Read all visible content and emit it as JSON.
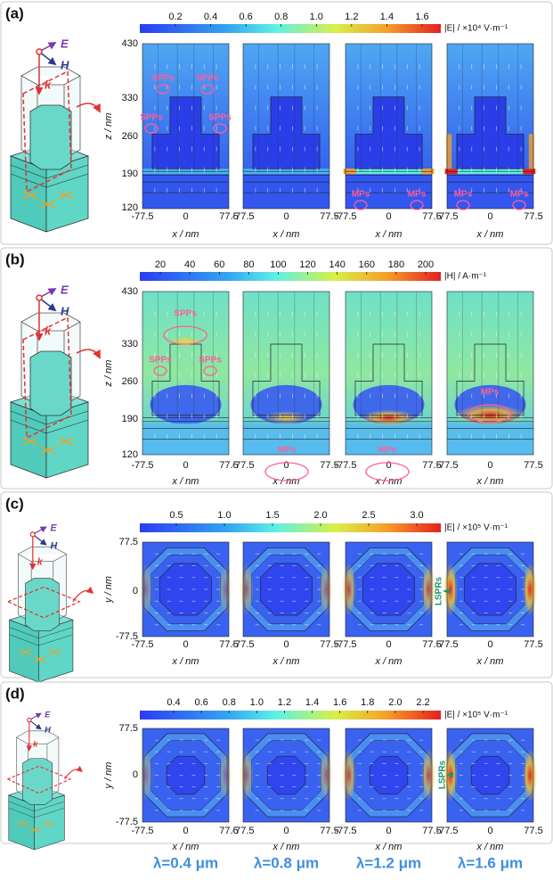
{
  "panels": [
    {
      "label": "(a)",
      "schematic": {
        "E": "E",
        "H": "H",
        "k": "k"
      },
      "colorbar": {
        "ticks": [
          "0.2",
          "0.4",
          "0.6",
          "0.8",
          "1.0",
          "1.2",
          "1.4",
          "1.6"
        ],
        "unit": "|E| / ×10⁴ V·m⁻¹"
      },
      "y_axis": {
        "label": "z / nm",
        "ticks": [
          "430",
          "330",
          "260",
          "190",
          "120"
        ]
      },
      "x_axis": {
        "label": "x / nm",
        "ticks": [
          "-77.5",
          "0",
          "77.5"
        ]
      },
      "maps": [
        {
          "annotations": [
            "SPPs",
            "SPPs",
            "SPPs",
            "SPPs"
          ]
        },
        {
          "annotations": []
        },
        {
          "annotations": [
            "MPs",
            "MPs"
          ]
        },
        {
          "annotations": [
            "MPs",
            "MPs"
          ]
        }
      ]
    },
    {
      "label": "(b)",
      "schematic": {
        "E": "E",
        "H": "H",
        "k": "k"
      },
      "colorbar": {
        "ticks": [
          "20",
          "40",
          "60",
          "80",
          "100",
          "120",
          "140",
          "160",
          "180",
          "200"
        ],
        "unit": "|H| / A·m⁻¹"
      },
      "y_axis": {
        "label": "z / nm",
        "ticks": [
          "430",
          "330",
          "260",
          "190",
          "120"
        ]
      },
      "x_axis": {
        "label": "x / nm",
        "ticks": [
          "-77.5",
          "0",
          "77.5"
        ]
      },
      "maps": [
        {
          "annotations": [
            "SPPs",
            "SPPs",
            "SPPs"
          ]
        },
        {
          "annotations": [
            "MPs"
          ]
        },
        {
          "annotations": [
            "MPs"
          ]
        },
        {
          "annotations": [
            "MPs"
          ]
        }
      ]
    },
    {
      "label": "(c)",
      "schematic": {
        "E": "E",
        "H": "H",
        "k": "k"
      },
      "colorbar": {
        "ticks": [
          "0.5",
          "1.0",
          "1.5",
          "2.0",
          "2.5",
          "3.0"
        ],
        "unit": "|E| / ×10⁵ V·m⁻¹"
      },
      "y_axis": {
        "label": "y / nm",
        "ticks": [
          "77.5",
          "0",
          "-77.5"
        ]
      },
      "x_axis": {
        "label": "x / nm",
        "ticks": [
          "-77.5",
          "0",
          "77.5"
        ]
      },
      "maps": [
        {
          "annotations": []
        },
        {
          "annotations": []
        },
        {
          "annotations": []
        },
        {
          "annotations": [
            "LSPRs"
          ]
        }
      ]
    },
    {
      "label": "(d)",
      "schematic": {
        "E": "E",
        "H": "H",
        "k": "k"
      },
      "colorbar": {
        "ticks": [
          "0.4",
          "0.6",
          "0.8",
          "1.0",
          "1.2",
          "1.4",
          "1.6",
          "1.8",
          "2.0",
          "2.2"
        ],
        "unit": "|E| / ×10⁵ V·m⁻¹"
      },
      "y_axis": {
        "label": "y / nm",
        "ticks": [
          "77.5",
          "0",
          "-77.5"
        ]
      },
      "x_axis": {
        "label": "x / nm",
        "ticks": [
          "-77.5",
          "0",
          "77.5"
        ]
      },
      "maps": [
        {
          "annotations": []
        },
        {
          "annotations": []
        },
        {
          "annotations": []
        },
        {
          "annotations": [
            "LSPRs"
          ]
        }
      ]
    }
  ],
  "wavelengths": [
    "λ=0.4 μm",
    "λ=0.8 μm",
    "λ=1.2 μm",
    "λ=1.6 μm"
  ]
}
